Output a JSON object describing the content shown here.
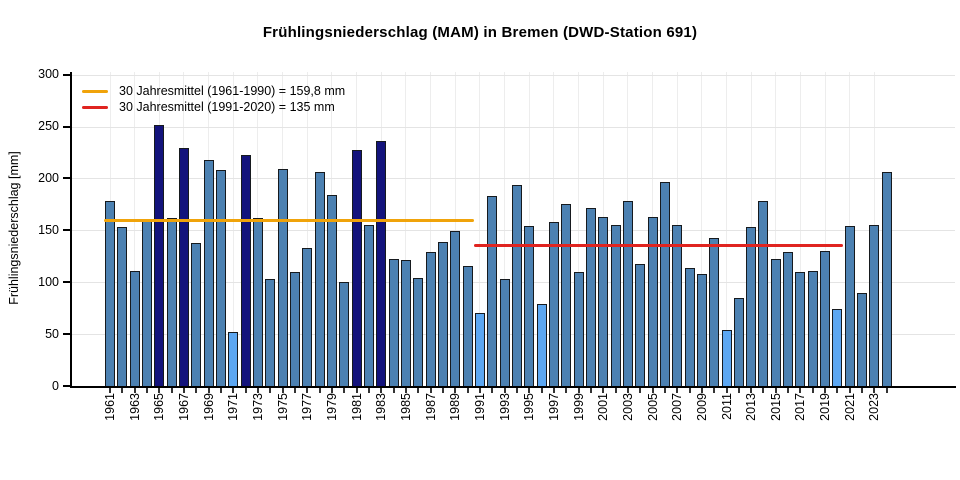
{
  "chart_data": {
    "type": "bar",
    "title": "Frühlingsniederschlag (MAM) in Bremen (DWD-Station 691)",
    "ylabel": "Frühlingsniederschlag [mm]",
    "ylim": [
      0,
      300
    ],
    "yticks": [
      0,
      50,
      100,
      150,
      200,
      250,
      300
    ],
    "x_tick_every_year": true,
    "x_label_every_n_years": 2,
    "grid": true,
    "legend_position": "top-left",
    "years": [
      1961,
      1962,
      1963,
      1964,
      1965,
      1966,
      1967,
      1968,
      1969,
      1970,
      1971,
      1972,
      1973,
      1974,
      1975,
      1976,
      1977,
      1978,
      1979,
      1980,
      1981,
      1982,
      1983,
      1984,
      1985,
      1986,
      1987,
      1988,
      1989,
      1990,
      1991,
      1992,
      1993,
      1994,
      1995,
      1996,
      1997,
      1998,
      1999,
      2000,
      2001,
      2002,
      2003,
      2004,
      2005,
      2006,
      2007,
      2008,
      2009,
      2010,
      2011,
      2012,
      2013,
      2014,
      2015,
      2016,
      2017,
      2018,
      2019,
      2020,
      2021,
      2022,
      2023,
      2024
    ],
    "values": [
      178,
      153,
      111,
      160,
      252,
      162,
      229,
      138,
      218,
      208,
      52,
      223,
      162,
      103,
      209,
      110,
      133,
      206,
      184,
      100,
      227,
      155,
      236,
      122,
      121,
      104,
      129,
      139,
      149,
      116,
      70,
      183,
      103,
      194,
      154,
      79,
      158,
      175,
      110,
      172,
      163,
      155,
      178,
      118,
      163,
      197,
      155,
      114,
      108,
      143,
      54,
      85,
      153,
      178,
      122,
      129,
      110,
      111,
      130,
      74,
      154,
      90,
      155,
      206
    ],
    "dark_years": [
      1965,
      1967,
      1972,
      1981,
      1983
    ],
    "light_years": [
      1971,
      1991,
      1996,
      2011,
      2020
    ],
    "colors": {
      "bar_default": "#4C81B2",
      "bar_dark": "#13137C",
      "bar_light": "#5CA7F2",
      "bar_outline": "#161A1E",
      "grid": "#E4E4E4",
      "axis": "#000000"
    },
    "reference_lines": [
      {
        "name": "mean-1961-1990",
        "label": "30 Jahresmittel (1961-1990) = 159,8 mm",
        "value": 159.8,
        "color": "#F0A30A",
        "from_year": 1961,
        "to_year": 1990
      },
      {
        "name": "mean-1991-2020",
        "label": "30 Jahresmittel (1991-2020) = 135 mm",
        "value": 135,
        "color": "#E02420",
        "from_year": 1991,
        "to_year": 2020
      }
    ]
  }
}
